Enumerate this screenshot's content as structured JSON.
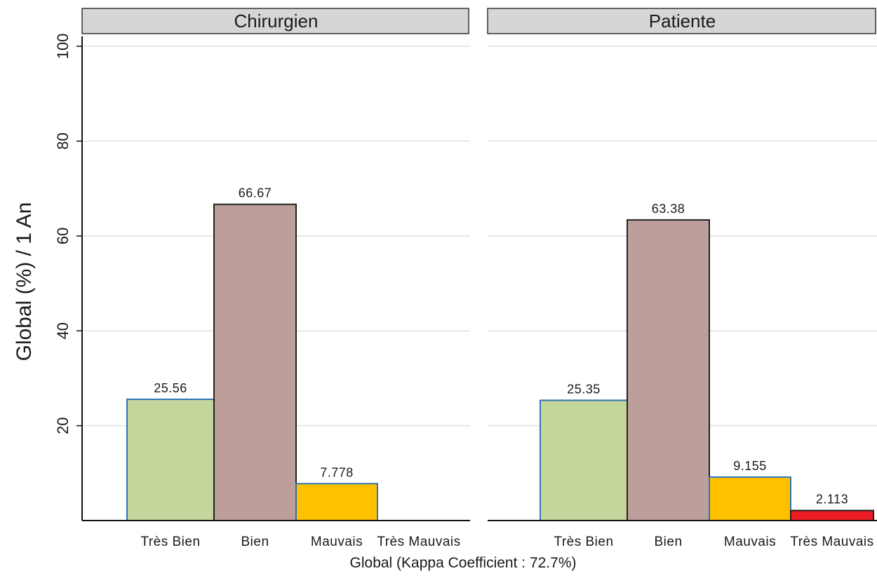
{
  "chart_data": {
    "type": "bar",
    "layout": "faceted",
    "xlabel": "Global (Kappa Coefficient : 72.7%)",
    "ylabel": "Global (%) / 1 An",
    "ylim": [
      0,
      100
    ],
    "yticks": [
      20,
      40,
      60,
      80,
      100
    ],
    "grid": true,
    "categories": [
      "Très Bien",
      "Bien",
      "Mauvais",
      "Très Mauvais"
    ],
    "category_colors": [
      "#c5d69c",
      "#bc9f9a",
      "#ffc000",
      "#ee1c24"
    ],
    "bar_outline_colors": [
      "#2e75b6",
      "#222222",
      "#2e75b6",
      "#222222"
    ],
    "panels": [
      {
        "title": "Chirurgien",
        "values": [
          25.56,
          66.67,
          7.778,
          null
        ],
        "labels": [
          "25.56",
          "66.67",
          "7.778",
          ""
        ]
      },
      {
        "title": "Patiente",
        "values": [
          25.35,
          63.38,
          9.155,
          2.113
        ],
        "labels": [
          "25.35",
          "63.38",
          "9.155",
          "2.113"
        ]
      }
    ]
  }
}
